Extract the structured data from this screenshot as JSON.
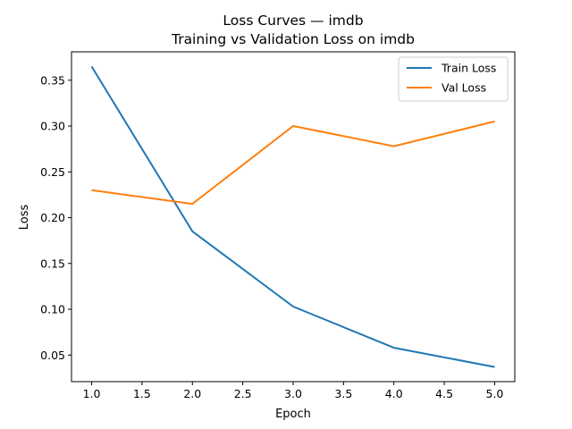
{
  "chart_data": {
    "type": "line",
    "title": "Loss Curves — imdb",
    "subtitle": "Training vs Validation Loss on imdb",
    "xlabel": "Epoch",
    "ylabel": "Loss",
    "x": [
      1,
      2,
      3,
      4,
      5
    ],
    "xlim": [
      0.8,
      5.2
    ],
    "ylim": [
      0.021,
      0.381
    ],
    "xticks": [
      "1.0",
      "1.5",
      "2.0",
      "2.5",
      "3.0",
      "3.5",
      "4.0",
      "4.5",
      "5.0"
    ],
    "yticks": [
      "0.05",
      "0.10",
      "0.15",
      "0.20",
      "0.25",
      "0.30",
      "0.35"
    ],
    "grid": false,
    "legend_position": "top-right",
    "series": [
      {
        "name": "Train Loss",
        "color": "#1f77b4",
        "values": [
          0.365,
          0.185,
          0.103,
          0.058,
          0.037
        ]
      },
      {
        "name": "Val Loss",
        "color": "#ff7f0e",
        "values": [
          0.23,
          0.215,
          0.3,
          0.278,
          0.305
        ]
      }
    ]
  }
}
